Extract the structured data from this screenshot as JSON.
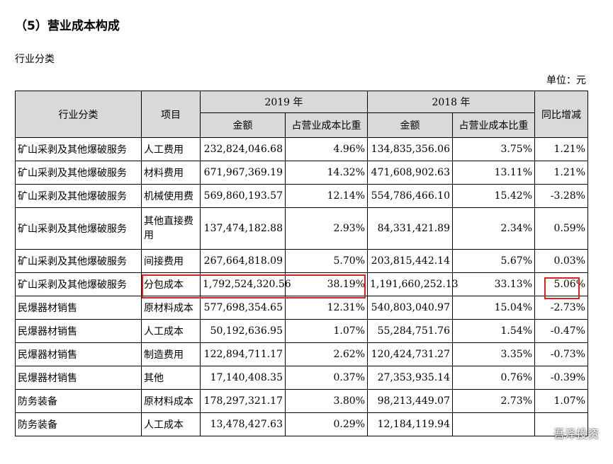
{
  "section_title": "（5）营业成本构成",
  "category_label": "行业分类",
  "unit": "单位：元",
  "header": {
    "industry": "行业分类",
    "item": "项目",
    "year_2019": "2019 年",
    "year_2018": "2018 年",
    "yoy": "同比增减",
    "amount": "金额",
    "ratio": "占营业成本比重"
  },
  "rows": [
    {
      "industry": "矿山采剥及其他爆破服务",
      "item": "人工费用",
      "amt2019": "232,824,046.68",
      "pct2019": "4.96%",
      "amt2018": "134,835,356.06",
      "pct2018": "3.75%",
      "yoy": "1.21%"
    },
    {
      "industry": "矿山采剥及其他爆破服务",
      "item": "材料费用",
      "amt2019": "671,967,369.19",
      "pct2019": "14.32%",
      "amt2018": "471,608,902.63",
      "pct2018": "13.11%",
      "yoy": "1.21%"
    },
    {
      "industry": "矿山采剥及其他爆破服务",
      "item": "机械使用费",
      "amt2019": "569,860,193.57",
      "pct2019": "12.14%",
      "amt2018": "554,786,466.10",
      "pct2018": "15.42%",
      "yoy": "-3.28%"
    },
    {
      "industry": "矿山采剥及其他爆破服务",
      "item": "其他直接费用",
      "amt2019": "137,474,182.88",
      "pct2019": "2.93%",
      "amt2018": "84,331,421.89",
      "pct2018": "2.34%",
      "yoy": "0.59%"
    },
    {
      "industry": "矿山采剥及其他爆破服务",
      "item": "间接费用",
      "amt2019": "267,664,818.09",
      "pct2019": "5.70%",
      "amt2018": "203,815,442.14",
      "pct2018": "5.67%",
      "yoy": "0.03%"
    },
    {
      "industry": "矿山采剥及其他爆破服务",
      "item": "分包成本",
      "amt2019": "1,792,524,320.56",
      "pct2019": "38.19%",
      "amt2018": "1,191,660,252.13",
      "pct2018": "33.13%",
      "yoy": "5.06%"
    },
    {
      "industry": "民爆器材销售",
      "item": "原材料成本",
      "amt2019": "577,698,354.65",
      "pct2019": "12.31%",
      "amt2018": "540,803,040.97",
      "pct2018": "15.04%",
      "yoy": "-2.73%"
    },
    {
      "industry": "民爆器材销售",
      "item": "人工成本",
      "amt2019": "50,192,636.95",
      "pct2019": "1.07%",
      "amt2018": "55,284,751.76",
      "pct2018": "1.54%",
      "yoy": "-0.47%"
    },
    {
      "industry": "民爆器材销售",
      "item": "制造费用",
      "amt2019": "122,894,711.17",
      "pct2019": "2.62%",
      "amt2018": "120,424,731.27",
      "pct2018": "3.35%",
      "yoy": "-0.73%"
    },
    {
      "industry": "民爆器材销售",
      "item": "其他",
      "amt2019": "17,140,408.35",
      "pct2019": "0.37%",
      "amt2018": "27,353,935.14",
      "pct2018": "0.76%",
      "yoy": "-0.39%"
    },
    {
      "industry": "防务装备",
      "item": "原材料成本",
      "amt2019": "178,297,321.17",
      "pct2019": "3.80%",
      "amt2018": "98,213,449.07",
      "pct2018": "2.73%",
      "yoy": "1.07%"
    },
    {
      "industry": "防务装备",
      "item": "人工成本",
      "amt2019": "13,478,427.63",
      "pct2019": "0.29%",
      "amt2018": "12,184,119.94",
      "pct2018": "",
      "yoy": ""
    }
  ],
  "highlight_color": "#e02020",
  "header_bg": "#d9d9d9",
  "watermark": "吾泽投资"
}
